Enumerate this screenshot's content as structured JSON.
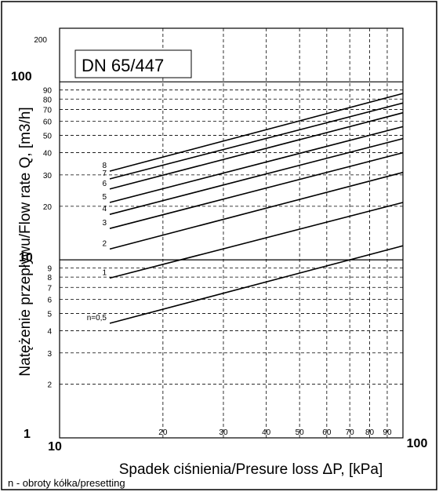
{
  "chart_data": {
    "type": "line",
    "title": "DN 65/447",
    "xlabel": "Spadek ciśnienia/Presure loss ΔP, [kPa]",
    "ylabel": "Natężenie przepływu/Flow rate Q, [m3/h]",
    "footnote": "n - obroty kółka/presetting",
    "x_scale": "log",
    "y_scale": "log",
    "xlim": [
      10,
      100
    ],
    "ylim": [
      1,
      200
    ],
    "grid": true,
    "x_ticks": [
      {
        "value": 10,
        "label": "10",
        "major": true
      },
      {
        "value": 20,
        "label": "20",
        "major": false
      },
      {
        "value": 30,
        "label": "30",
        "major": false
      },
      {
        "value": 40,
        "label": "40",
        "major": false
      },
      {
        "value": 50,
        "label": "50",
        "major": false
      },
      {
        "value": 60,
        "label": "60",
        "major": false
      },
      {
        "value": 70,
        "label": "70",
        "major": false
      },
      {
        "value": 80,
        "label": "80",
        "major": false
      },
      {
        "value": 90,
        "label": "90",
        "major": false
      },
      {
        "value": 100,
        "label": "100",
        "major": true
      }
    ],
    "y_ticks": [
      {
        "value": 1,
        "label": "1",
        "major": true
      },
      {
        "value": 2,
        "label": "2",
        "major": false
      },
      {
        "value": 3,
        "label": "3",
        "major": false
      },
      {
        "value": 4,
        "label": "4",
        "major": false
      },
      {
        "value": 5,
        "label": "5",
        "major": false
      },
      {
        "value": 6,
        "label": "6",
        "major": false
      },
      {
        "value": 7,
        "label": "7",
        "major": false
      },
      {
        "value": 8,
        "label": "8",
        "major": false
      },
      {
        "value": 9,
        "label": "9",
        "major": false
      },
      {
        "value": 10,
        "label": "10",
        "major": true
      },
      {
        "value": 20,
        "label": "20",
        "major": false
      },
      {
        "value": 30,
        "label": "30",
        "major": false
      },
      {
        "value": 40,
        "label": "40",
        "major": false
      },
      {
        "value": 50,
        "label": "50",
        "major": false
      },
      {
        "value": 60,
        "label": "60",
        "major": false
      },
      {
        "value": 70,
        "label": "70",
        "major": false
      },
      {
        "value": 80,
        "label": "80",
        "major": false
      },
      {
        "value": 90,
        "label": "90",
        "major": false
      },
      {
        "value": 100,
        "label": "100",
        "major": true
      },
      {
        "value": 200,
        "label": "200",
        "major": false
      }
    ],
    "series": [
      {
        "name": "n=0,5",
        "x": [
          14,
          100
        ],
        "y": [
          4.4,
          12
        ]
      },
      {
        "name": "1",
        "x": [
          14,
          100
        ],
        "y": [
          7.9,
          21
        ]
      },
      {
        "name": "2",
        "x": [
          14,
          100
        ],
        "y": [
          11.5,
          31
        ]
      },
      {
        "name": "3",
        "x": [
          14,
          100
        ],
        "y": [
          15,
          40
        ]
      },
      {
        "name": "4",
        "x": [
          14,
          100
        ],
        "y": [
          18,
          48
        ]
      },
      {
        "name": "5",
        "x": [
          14,
          100
        ],
        "y": [
          21,
          56
        ]
      },
      {
        "name": "6",
        "x": [
          14,
          100
        ],
        "y": [
          25,
          67
        ]
      },
      {
        "name": "7",
        "x": [
          14,
          100
        ],
        "y": [
          28.5,
          76
        ]
      },
      {
        "name": "8",
        "x": [
          14,
          100
        ],
        "y": [
          31.5,
          86
        ]
      }
    ]
  }
}
